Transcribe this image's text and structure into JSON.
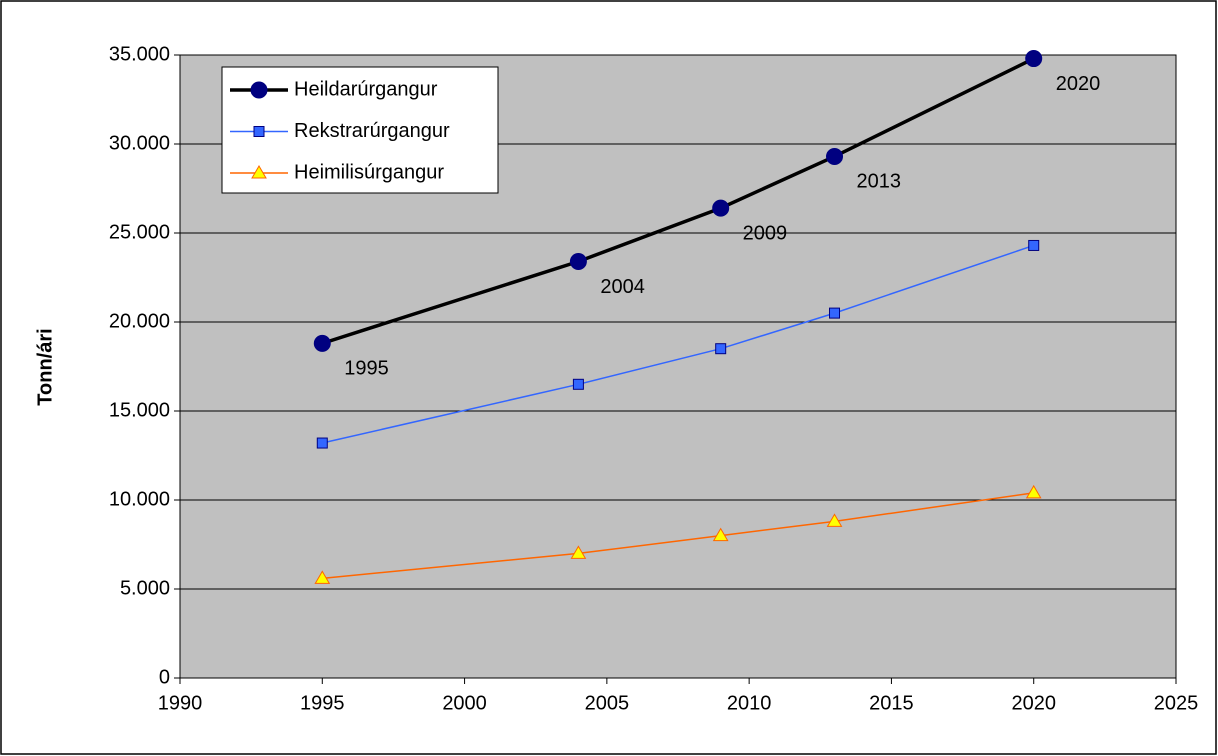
{
  "chart_data": {
    "type": "line",
    "y_label": "Tonn/ári",
    "x": [
      1995,
      2004,
      2009,
      2013,
      2020
    ],
    "series": [
      {
        "name": "Heildarúrgangur",
        "color": "#000000",
        "marker": "circle",
        "marker_color": "#000080",
        "values": [
          18800,
          23400,
          26400,
          29300,
          34800
        ]
      },
      {
        "name": "Rekstrarúrgangur",
        "color": "#3366ff",
        "marker": "square",
        "marker_color": "#3366ff",
        "values": [
          13200,
          16500,
          18500,
          20500,
          24300
        ]
      },
      {
        "name": "Heimilisúrgangur",
        "color": "#ff6600",
        "marker": "triangle",
        "marker_color": "#ffff00",
        "values": [
          5600,
          7000,
          8000,
          8800,
          10400
        ]
      }
    ],
    "xlim": [
      1990,
      2025
    ],
    "xticks": [
      1990,
      1995,
      2000,
      2005,
      2010,
      2015,
      2020,
      2025
    ],
    "ylim": [
      0,
      35000
    ],
    "yticks": [
      0,
      {
        "value": 5000,
        "label": "5.000"
      },
      {
        "value": 10000,
        "label": "10.000"
      },
      {
        "value": 15000,
        "label": "15.000"
      },
      {
        "value": 20000,
        "label": "20.000"
      },
      {
        "value": 25000,
        "label": "25.000"
      },
      {
        "value": 30000,
        "label": "30.000"
      },
      {
        "value": 35000,
        "label": "35.000"
      }
    ],
    "grid": true,
    "legend": "upper left",
    "plot_background": "#c0c0c0"
  }
}
